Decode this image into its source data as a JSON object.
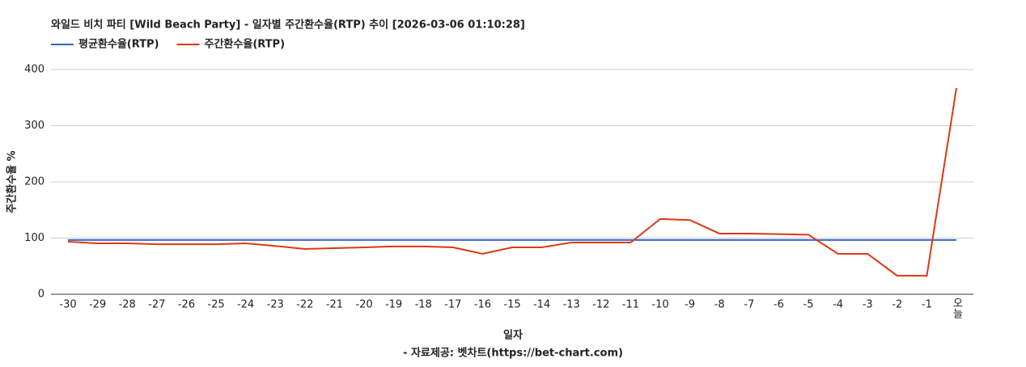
{
  "chart_data": {
    "type": "line",
    "title": "와일드 비치 파티 [Wild Beach Party] - 일자별 주간환수율(RTP) 추이 [2026-03-06 01:10:28]",
    "x_label": "일자",
    "y_label": "주간환수율 %",
    "source": "- 자료제공: 벳차트(https://bet-chart.com)",
    "categories": [
      "-30",
      "-29",
      "-28",
      "-27",
      "-26",
      "-25",
      "-24",
      "-23",
      "-22",
      "-21",
      "-20",
      "-19",
      "-18",
      "-17",
      "-16",
      "-15",
      "-14",
      "-13",
      "-12",
      "-11",
      "-10",
      "-9",
      "-8",
      "-7",
      "-6",
      "-5",
      "-4",
      "-3",
      "-2",
      "-1",
      "오늘"
    ],
    "series": [
      {
        "name": "평균환수율(RTP)",
        "color": "#3366cc",
        "values": [
          96.5,
          96.5,
          96.5,
          96.5,
          96.5,
          96.5,
          96.5,
          96.5,
          96.5,
          96.5,
          96.5,
          96.5,
          96.5,
          96.5,
          96.5,
          96.5,
          96.5,
          96.5,
          96.5,
          96.5,
          96.5,
          96.5,
          96.5,
          96.5,
          96.5,
          96.5,
          96.5,
          96.5,
          96.5,
          96.5,
          96.5
        ]
      },
      {
        "name": "주간환수율(RTP)",
        "color": "#dc3912",
        "values": [
          93.5,
          90.6,
          90.6,
          89,
          89,
          89,
          90.6,
          86,
          80.6,
          82,
          83.5,
          85,
          85,
          83.5,
          72,
          83.5,
          83.5,
          92,
          92,
          92,
          134,
          132,
          108,
          108,
          107,
          106,
          72,
          72,
          33,
          33,
          367
        ]
      }
    ],
    "ylim": [
      0,
      400
    ],
    "yticks": [
      0,
      100,
      200,
      300,
      400
    ],
    "grid": true,
    "legend": "top-left"
  }
}
